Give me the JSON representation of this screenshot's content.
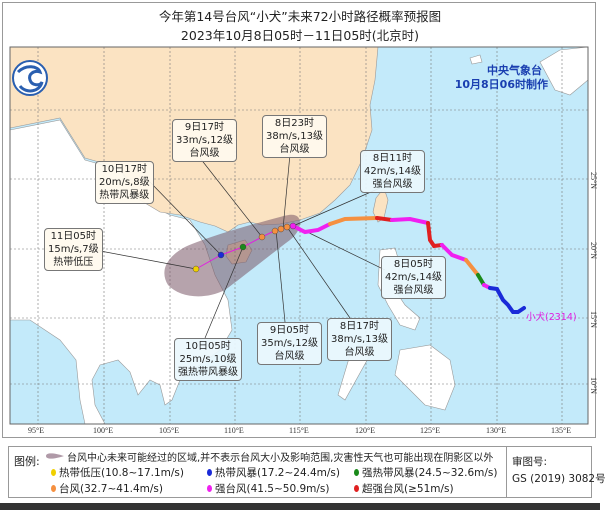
{
  "header": {
    "title": "今年第14号台风“小犬”未来72小时路径概率预报图",
    "subtitle": "2023年10月8日05时－11日05时(北京时)"
  },
  "agency": {
    "name": "中央气象台",
    "issued": "10月8日06时制作",
    "logo_icon": "cma-logo-icon"
  },
  "typhoon": {
    "label": "小犬",
    "code": "(2314)"
  },
  "axes": {
    "longitude": [
      "95°E",
      "100°E",
      "105°E",
      "110°E",
      "115°E",
      "120°E",
      "125°E",
      "130°E",
      "135°E"
    ],
    "latitude": [
      "25°N",
      "20°N",
      "15°N",
      "10°N"
    ]
  },
  "forecast_points": [
    {
      "time": "8日05时",
      "wind": "42m/s,14级",
      "level": "强台风级"
    },
    {
      "time": "8日11时",
      "wind": "42m/s,14级",
      "level": "强台风级"
    },
    {
      "time": "8日17时",
      "wind": "38m/s,13级",
      "level": "台风级"
    },
    {
      "time": "8日23时",
      "wind": "38m/s,13级",
      "level": "台风级"
    },
    {
      "time": "9日05时",
      "wind": "35m/s,12级",
      "level": "台风级"
    },
    {
      "time": "9日17时",
      "wind": "33m/s,12级",
      "level": "台风级"
    },
    {
      "time": "10日05时",
      "wind": "25m/s,10级",
      "level": "强热带风暴级"
    },
    {
      "time": "10日17时",
      "wind": "20m/s,8级",
      "level": "热带风暴级"
    },
    {
      "time": "11日05时",
      "wind": "15m/s,7级",
      "level": "热带低压"
    }
  ],
  "legend": {
    "label": "图例:",
    "cone": "台风中心未来可能经过的区域,并不表示台风大小及影响范围,灾害性天气也可能出现在阴影区以外",
    "items": [
      {
        "label": "热带低压(10.8~17.1m/s)",
        "color": "#f0d000"
      },
      {
        "label": "热带风暴(17.2~24.4m/s)",
        "color": "#1a2ad8"
      },
      {
        "label": "强热带风暴(24.5~32.6m/s)",
        "color": "#1a8a1a"
      },
      {
        "label": "台风(32.7~41.4m/s)",
        "color": "#f59040"
      },
      {
        "label": "强台风(41.5~50.9m/s)",
        "color": "#f020f0"
      },
      {
        "label": "超强台风(≥51m/s)",
        "color": "#e02020"
      }
    ],
    "approval_label": "审图号:",
    "approval_number": "GS (2019) 3082号"
  },
  "colors": {
    "ocean": "#c3eafa",
    "china_land": "#fbe3c2",
    "other_land": "#ffffff",
    "cone": "#8a6b78"
  }
}
